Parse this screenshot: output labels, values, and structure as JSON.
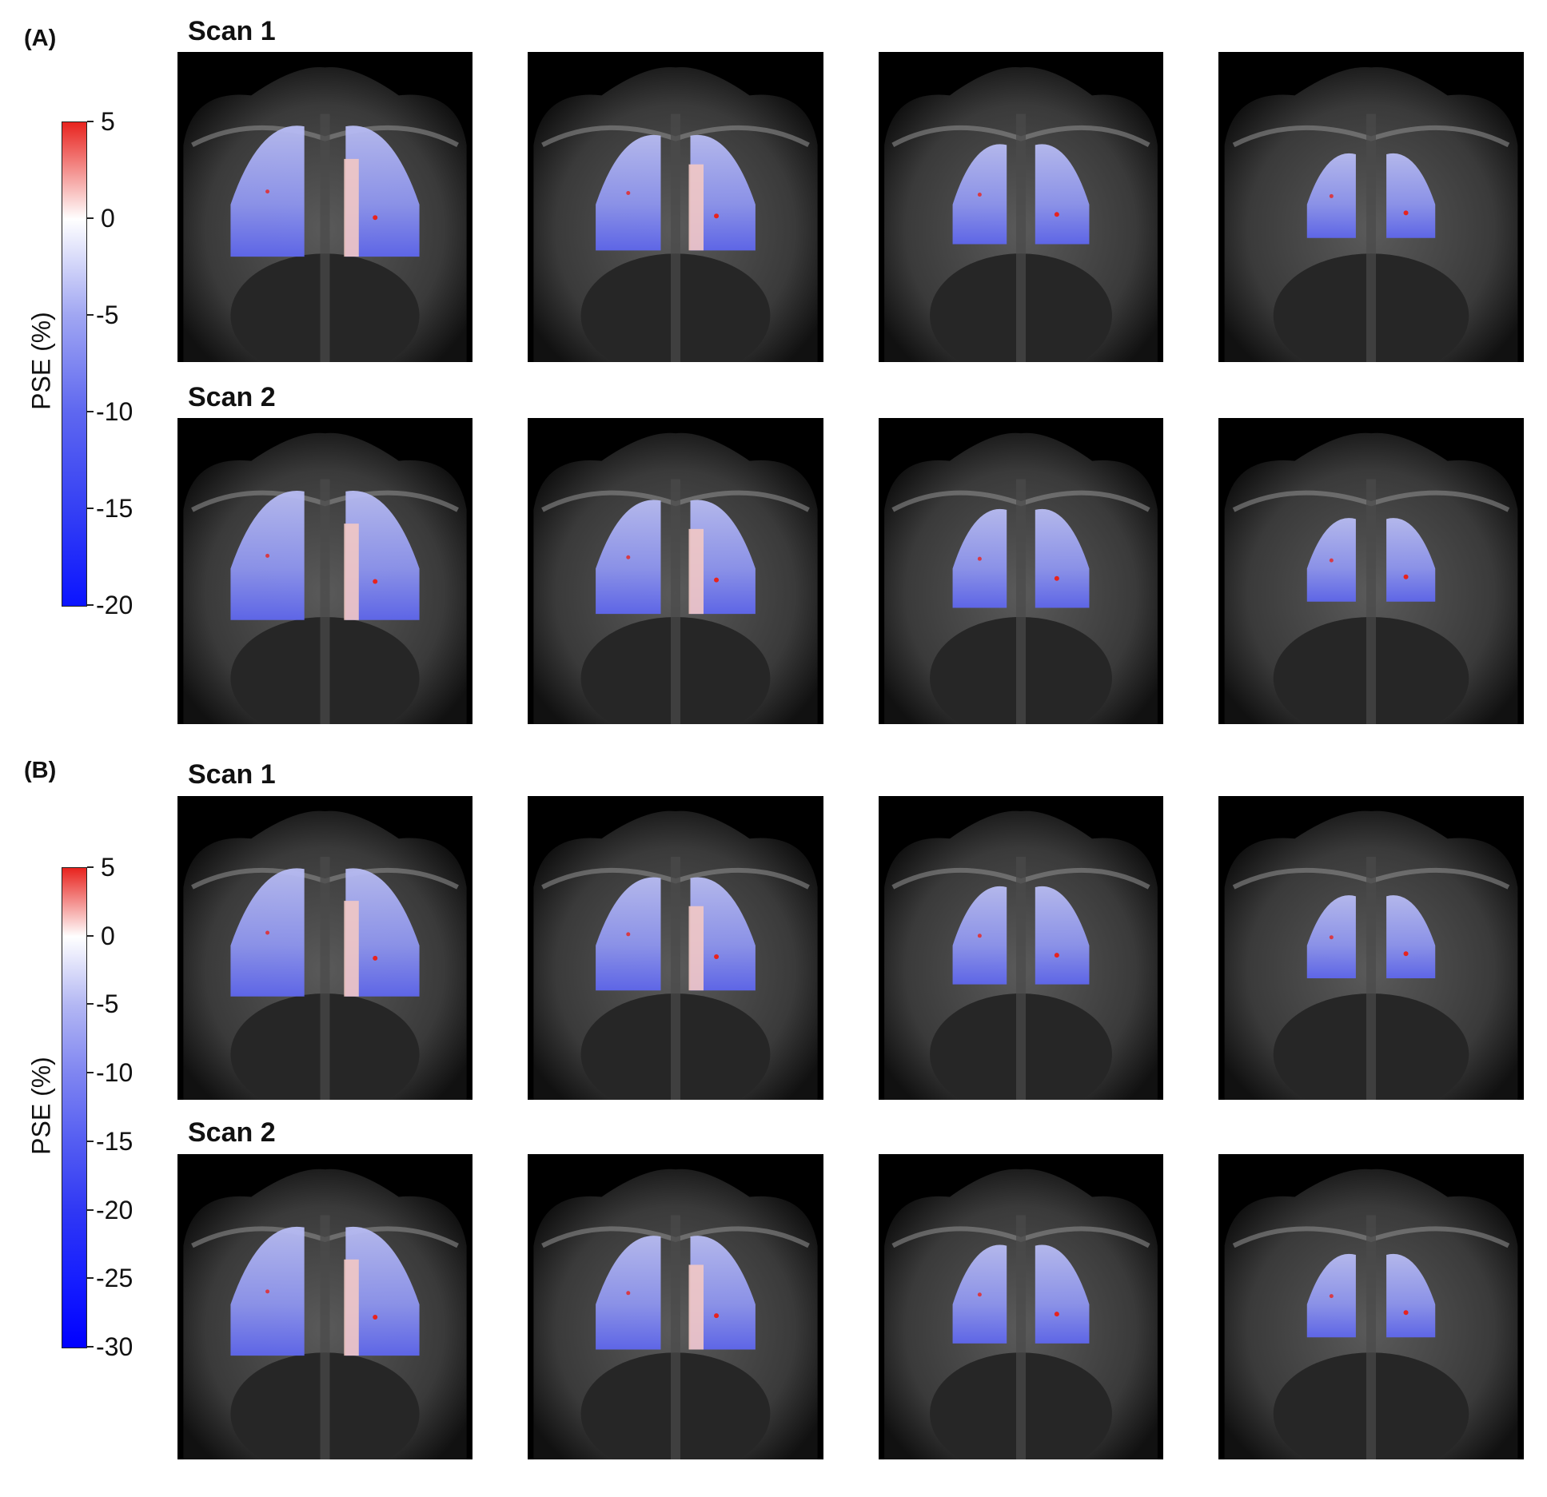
{
  "panels": [
    {
      "label": "(A)",
      "scan1_label": "Scan 1",
      "scan2_label": "Scan 2",
      "colorbar": {
        "title": "PSE (%)",
        "ticks": [
          "5",
          "0",
          "-5",
          "-10",
          "-15",
          "-20"
        ],
        "range": [
          -20,
          5
        ],
        "colors": [
          "#e8231e",
          "#ffffff",
          "#0b14ff"
        ]
      }
    },
    {
      "label": "(B)",
      "scan1_label": "Scan 1",
      "scan2_label": "Scan 2",
      "colorbar": {
        "title": "PSE (%)",
        "ticks": [
          "5",
          "0",
          "-5",
          "-10",
          "-15",
          "-20",
          "-25",
          "-30"
        ],
        "range": [
          -30,
          5
        ],
        "colors": [
          "#e8231e",
          "#ffffff",
          "#0000ff"
        ]
      }
    }
  ],
  "images": {
    "description_icon": "mri-coronal-slice-with-lung-pse-overlay",
    "rows": 4,
    "columns": 4
  }
}
